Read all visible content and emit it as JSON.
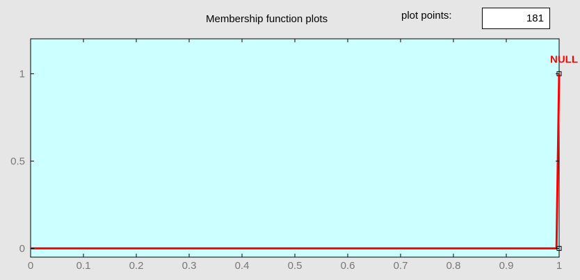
{
  "header": {
    "title": "Membership function plots",
    "plot_points_label": "plot points:",
    "plot_points_value": "181"
  },
  "colors": {
    "plot_background": "#ccffff",
    "frame": "#000000",
    "tick_label": "#777777",
    "curve": "#ff0000",
    "panel_background": "#e6e6e6"
  },
  "chart_data": {
    "type": "line",
    "xlim": [
      0,
      1
    ],
    "ylim": [
      -0.05,
      1.2
    ],
    "xticks": [
      0,
      0.1,
      0.2,
      0.3,
      0.4,
      0.5,
      0.6,
      0.7,
      0.8,
      0.9,
      1
    ],
    "xtick_labels": [
      "0",
      "0.1",
      "0.2",
      "0.3",
      "0.4",
      "0.5",
      "0.6",
      "0.7",
      "0.8",
      "0.9",
      "1"
    ],
    "yticks": [
      0,
      0.5,
      1
    ],
    "ytick_labels": [
      "0",
      "0.5",
      "1"
    ],
    "series": [
      {
        "name": "NULL",
        "color": "#ff0000",
        "x": [
          0,
          0.995,
          0.995,
          1.0,
          1.0
        ],
        "y": [
          0,
          0,
          0,
          1,
          1
        ]
      }
    ],
    "markers": [
      {
        "x": 1.0,
        "y": 1
      },
      {
        "x": 1.0,
        "y": 0
      }
    ]
  }
}
